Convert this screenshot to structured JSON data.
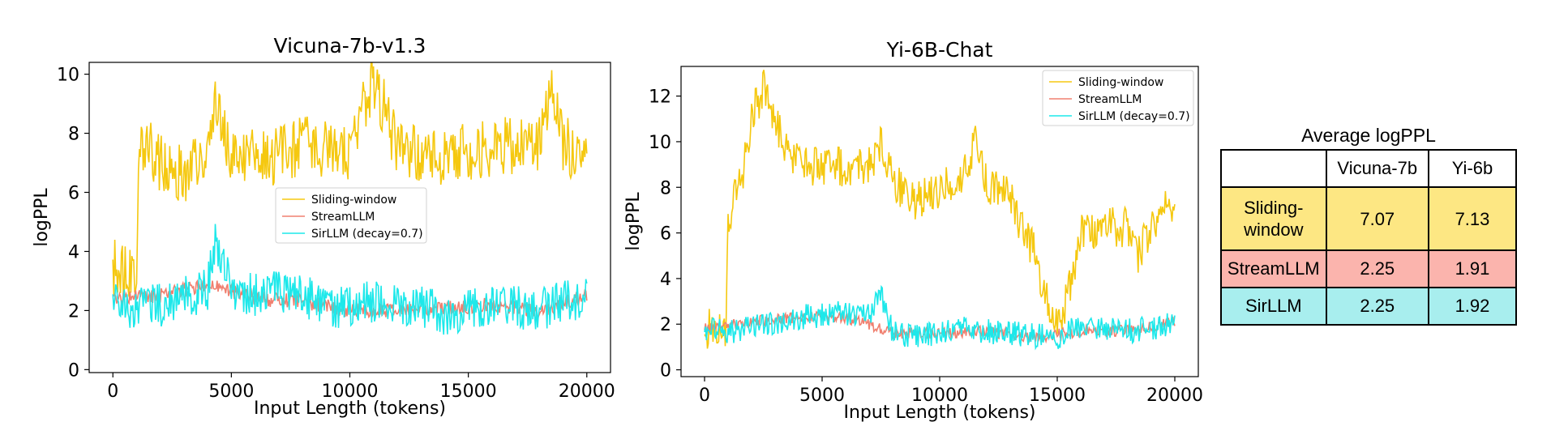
{
  "chart_data": [
    {
      "type": "line",
      "title": "Vicuna-7b-v1.3",
      "xlabel": "Input Length (tokens)",
      "ylabel": "logPPL",
      "xlim": [
        -1000,
        21000
      ],
      "ylim": [
        -0.1,
        10.4
      ],
      "xticks": [
        0,
        5000,
        10000,
        15000,
        20000
      ],
      "yticks": [
        0,
        2,
        4,
        6,
        8,
        10
      ],
      "grid": false,
      "legend_position": "center",
      "series": [
        {
          "name": "Sliding-window",
          "color": "#f5c810",
          "x": [
            0,
            1000,
            1100,
            2000,
            3000,
            4000,
            4300,
            5000,
            6000,
            7000,
            8000,
            9000,
            10000,
            11000,
            12000,
            13000,
            14000,
            15000,
            16000,
            17000,
            18000,
            18500,
            19000,
            20000
          ],
          "values": [
            3.4,
            3.4,
            7.9,
            7.0,
            6.6,
            7.3,
            9.3,
            7.1,
            7.3,
            7.2,
            7.6,
            7.5,
            7.3,
            9.9,
            7.5,
            7.3,
            7.2,
            7.4,
            7.5,
            7.6,
            7.6,
            9.6,
            7.6,
            7.2
          ]
        },
        {
          "name": "StreamLLM",
          "color": "#f08070",
          "x": [
            0,
            2000,
            4000,
            6000,
            8000,
            10000,
            12000,
            14000,
            16000,
            18000,
            20000
          ],
          "values": [
            2.4,
            2.5,
            2.9,
            2.4,
            2.3,
            2.0,
            2.0,
            2.1,
            2.2,
            2.0,
            2.5
          ]
        },
        {
          "name": "SirLLM (decay=0.7)",
          "color": "#1de8ea",
          "x": [
            0,
            1000,
            2000,
            3000,
            4000,
            4300,
            5000,
            6000,
            7000,
            8000,
            9000,
            10000,
            11000,
            12000,
            13000,
            14000,
            15000,
            16000,
            17000,
            18000,
            19000,
            20000
          ],
          "values": [
            2.3,
            2.1,
            2.2,
            2.4,
            2.7,
            4.4,
            2.8,
            2.5,
            2.6,
            2.5,
            2.2,
            2.1,
            2.3,
            2.2,
            2.1,
            1.9,
            2.0,
            2.2,
            2.1,
            2.0,
            2.3,
            2.5
          ]
        }
      ]
    },
    {
      "type": "line",
      "title": "Yi-6B-Chat",
      "xlabel": "Input Length (tokens)",
      "ylabel": "logPPL",
      "xlim": [
        -1000,
        21000
      ],
      "ylim": [
        -0.3,
        13.3
      ],
      "xticks": [
        0,
        5000,
        10000,
        15000,
        20000
      ],
      "yticks": [
        0,
        2,
        4,
        6,
        8,
        10,
        12
      ],
      "grid": false,
      "legend_position": "upper right",
      "series": [
        {
          "name": "Sliding-window",
          "color": "#f5c810",
          "x": [
            0,
            900,
            1000,
            1500,
            2000,
            2500,
            3000,
            3500,
            4000,
            5000,
            6000,
            7000,
            7500,
            8000,
            8500,
            9000,
            10000,
            11000,
            11500,
            12000,
            13000,
            13500,
            14000,
            14500,
            15000,
            15500,
            16000,
            17000,
            18000,
            18500,
            19000,
            19500,
            20000
          ],
          "values": [
            1.8,
            1.8,
            6.8,
            8.0,
            11.0,
            12.4,
            11.0,
            9.5,
            9.2,
            8.8,
            8.9,
            9.0,
            9.8,
            8.3,
            7.8,
            7.4,
            7.9,
            8.3,
            10.2,
            8.2,
            7.5,
            6.2,
            5.2,
            3.4,
            1.8,
            3.5,
            5.9,
            6.2,
            6.3,
            5.0,
            6.4,
            6.9,
            7.2
          ]
        },
        {
          "name": "StreamLLM",
          "color": "#f08070",
          "x": [
            0,
            2000,
            4000,
            6000,
            8000,
            10000,
            12000,
            14000,
            16000,
            18000,
            20000
          ],
          "values": [
            1.8,
            2.1,
            2.3,
            2.3,
            1.6,
            1.6,
            1.7,
            1.4,
            1.7,
            1.7,
            2.1
          ]
        },
        {
          "name": "SirLLM (decay=0.7)",
          "color": "#1de8ea",
          "x": [
            0,
            1000,
            2000,
            3000,
            4000,
            5000,
            6000,
            7000,
            7500,
            8000,
            9000,
            10000,
            11000,
            12000,
            13000,
            14000,
            15000,
            15500,
            16000,
            17000,
            18000,
            19000,
            20000
          ],
          "values": [
            1.8,
            1.6,
            1.9,
            2.1,
            2.3,
            2.4,
            2.5,
            2.4,
            3.3,
            1.6,
            1.5,
            1.6,
            1.8,
            1.7,
            1.6,
            1.5,
            1.4,
            1.8,
            1.8,
            1.8,
            1.7,
            1.8,
            2.1
          ]
        }
      ]
    },
    {
      "type": "table",
      "title": "Average logPPL",
      "columns": [
        "",
        "Vicuna-7b",
        "Yi-6b"
      ],
      "rows": [
        {
          "label_line1": "Sliding-",
          "label_line2": "window",
          "vicuna": "7.07",
          "yi": "7.13",
          "color": "#fde783"
        },
        {
          "label": "StreamLLM",
          "vicuna": "2.25",
          "yi": "1.91",
          "color": "#fbb4ad"
        },
        {
          "label": "SirLLM",
          "vicuna": "2.25",
          "yi": "1.92",
          "color": "#a8eeee"
        }
      ]
    }
  ]
}
